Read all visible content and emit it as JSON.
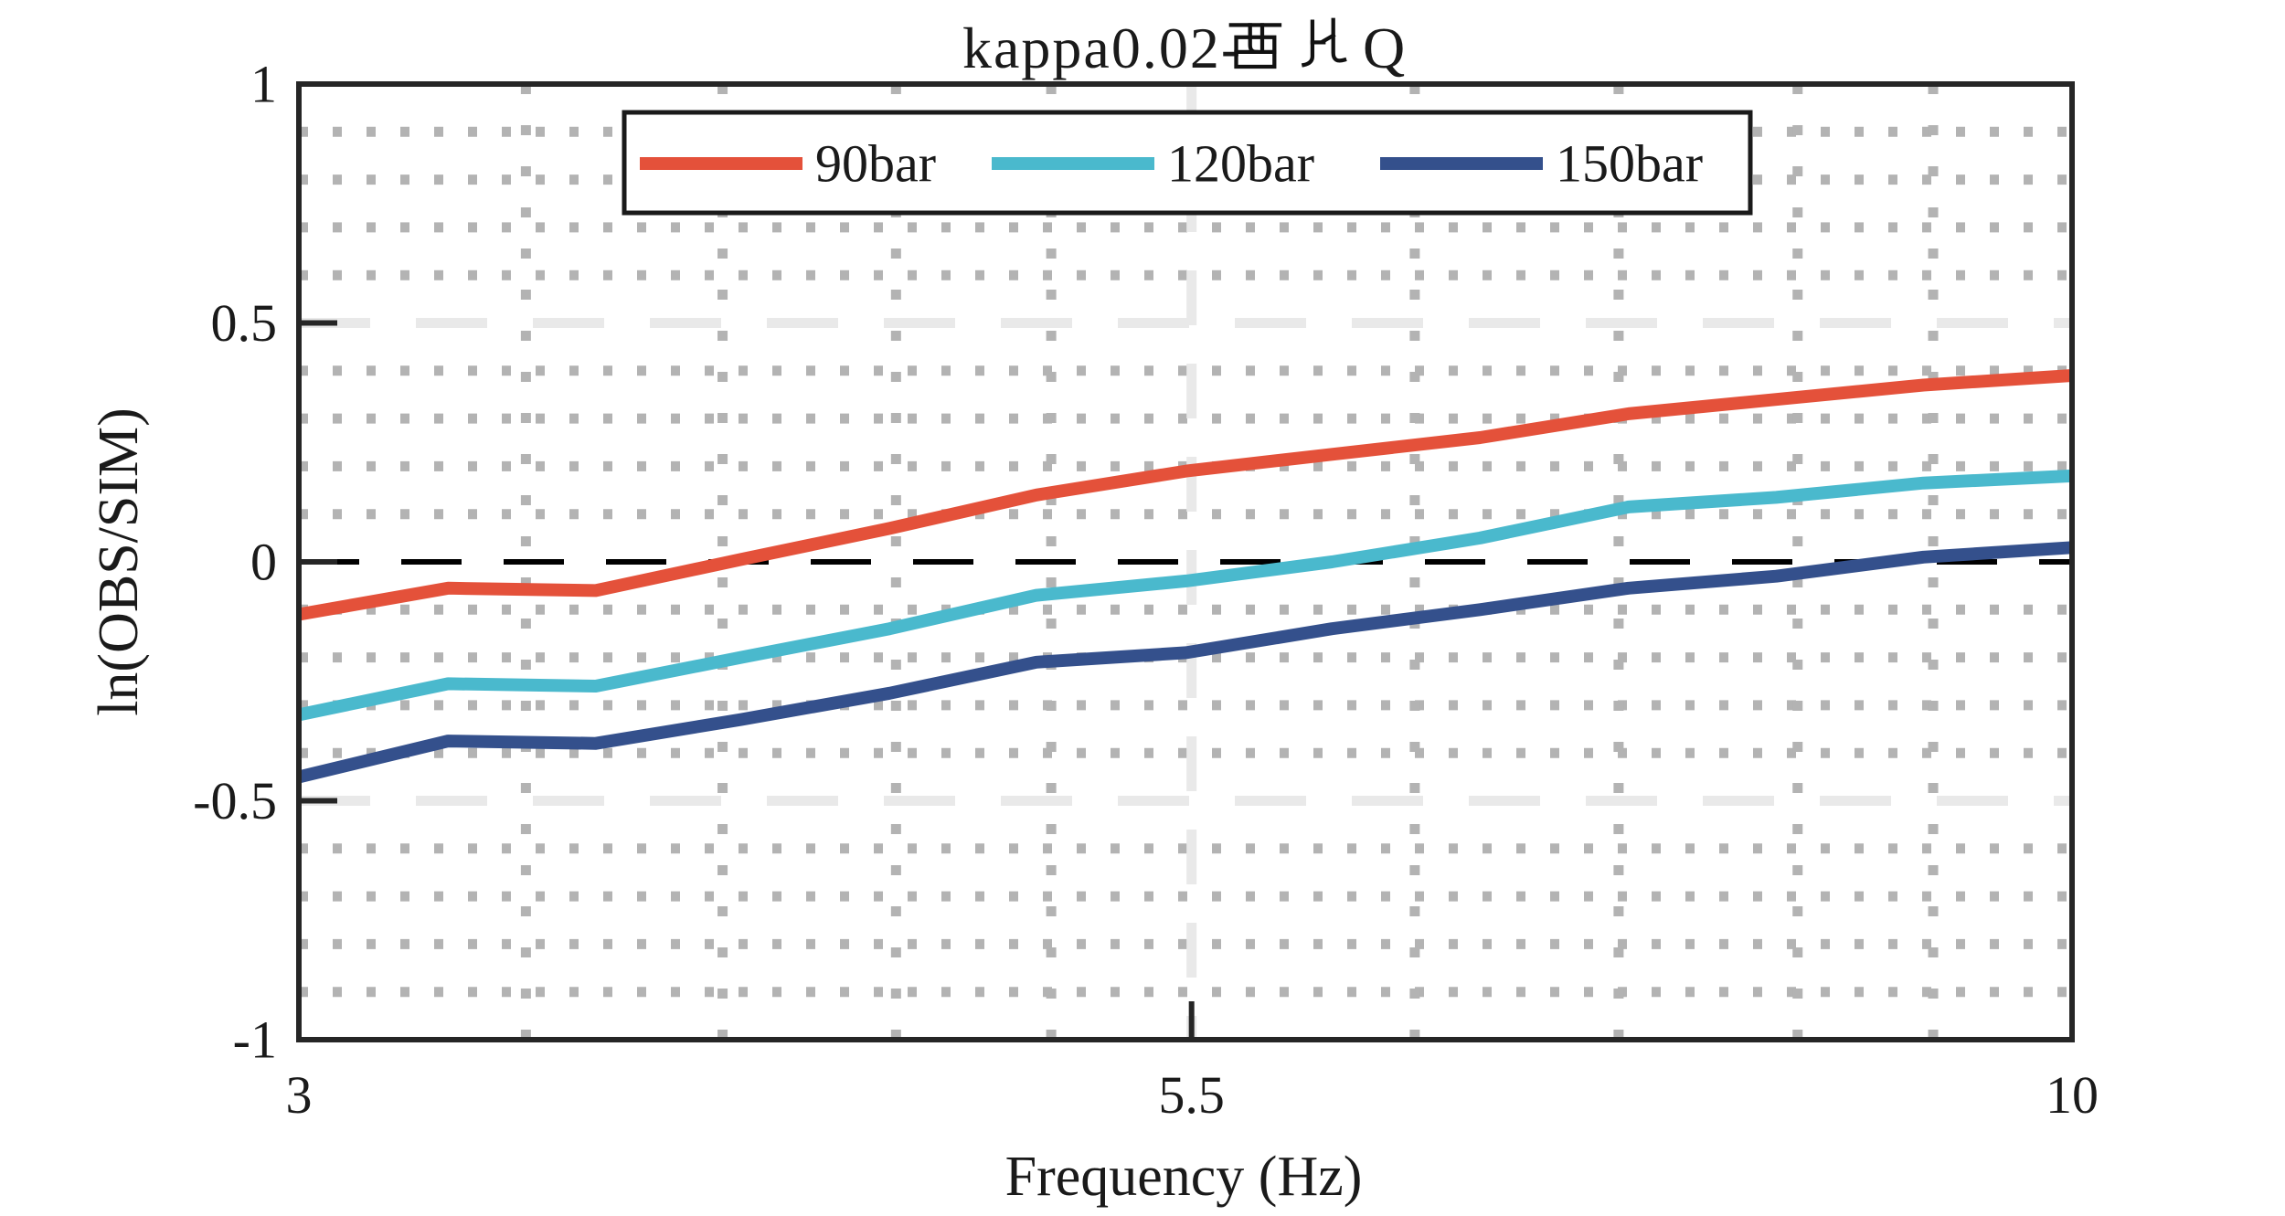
{
  "chart_data": {
    "type": "line",
    "title": "kappa0.02-西北Q",
    "xlabel": "Frequency (Hz)",
    "ylabel": "ln(OBS/SIM)",
    "x_scale": "log",
    "xlim": [
      3,
      10
    ],
    "ylim": [
      -1,
      1
    ],
    "x_ticks": [
      3,
      5.5,
      10
    ],
    "x_tick_labels": [
      "3",
      "5.5",
      "10"
    ],
    "y_ticks": [
      1,
      0.5,
      0,
      -0.5,
      -1
    ],
    "y_tick_labels": [
      "1",
      "0.5",
      "0",
      "-0.5",
      "-1"
    ],
    "grid": "on",
    "x_minor_grid": [
      3.5,
      4,
      4.5,
      5,
      6.4,
      7.35,
      8.3,
      9.1
    ],
    "y_minor_grid": [
      0.9,
      0.8,
      0.7,
      0.6,
      0.4,
      0.3,
      0.2,
      0.1,
      -0.1,
      -0.2,
      -0.3,
      -0.4,
      -0.6,
      -0.7,
      -0.8,
      -0.9
    ],
    "x_major_grid": [
      5.5
    ],
    "y_major_grid": [
      0.5,
      -0.5
    ],
    "zero_reference_line": 0,
    "x": [
      3.0,
      3.32,
      3.67,
      4.05,
      4.48,
      4.95,
      5.48,
      6.05,
      6.69,
      7.4,
      8.18,
      9.04,
      10.0
    ],
    "series": [
      {
        "name": "90bar",
        "color": "#e4513a",
        "values": [
          -0.11,
          -0.055,
          -0.06,
          0.005,
          0.07,
          0.14,
          0.19,
          0.225,
          0.26,
          0.31,
          0.34,
          0.37,
          0.39
        ]
      },
      {
        "name": "120bar",
        "color": "#4ab9cd",
        "values": [
          -0.32,
          -0.255,
          -0.26,
          -0.2,
          -0.14,
          -0.07,
          -0.04,
          0.0,
          0.05,
          0.115,
          0.135,
          0.165,
          0.18
        ]
      },
      {
        "name": "150bar",
        "color": "#34508c",
        "values": [
          -0.45,
          -0.375,
          -0.38,
          -0.33,
          -0.275,
          -0.21,
          -0.19,
          -0.14,
          -0.1,
          -0.055,
          -0.03,
          0.01,
          0.03
        ]
      }
    ],
    "legend": {
      "position": "top-center",
      "entries": [
        "90bar",
        "120bar",
        "150bar"
      ]
    },
    "colors": {
      "background": "#ffffff",
      "axis": "#262626",
      "grid_minor": "#b3b3b3",
      "grid_major": "#e9e9e9",
      "zero_line": "#000000",
      "legend_border": "#1a1a1a"
    }
  }
}
